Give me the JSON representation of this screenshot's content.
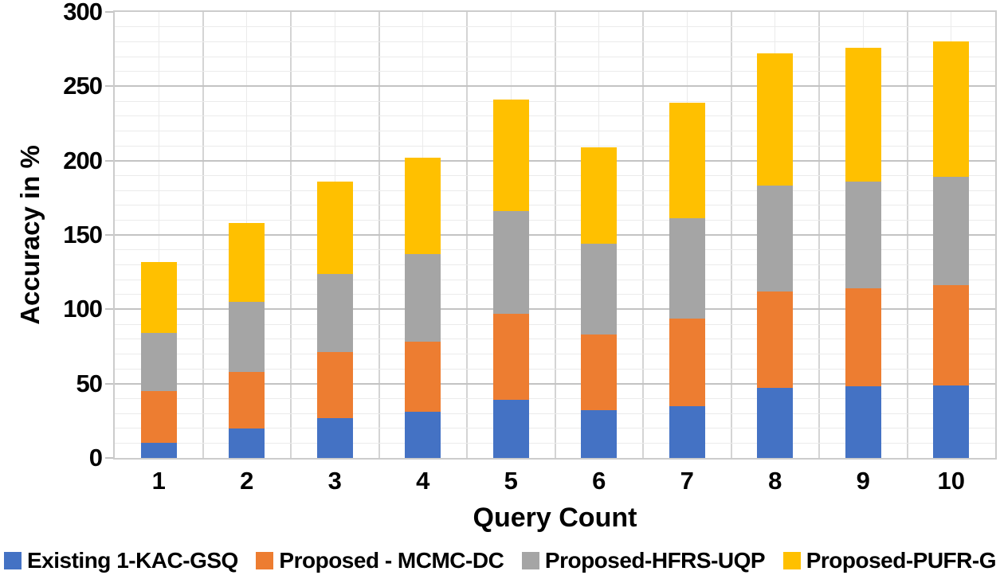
{
  "chart_data": {
    "type": "bar",
    "stacked": true,
    "title": "",
    "xlabel": "Query Count",
    "ylabel": "Accuracy in %",
    "ylim": [
      0,
      300
    ],
    "yticks": [
      0,
      50,
      100,
      150,
      200,
      250,
      300
    ],
    "yminor_step": 10,
    "grid": true,
    "legend_position": "bottom",
    "categories": [
      "1",
      "2",
      "3",
      "4",
      "5",
      "6",
      "7",
      "8",
      "9",
      "10"
    ],
    "series": [
      {
        "name": "Existing 1-KAC-GSQ",
        "color": "#4472C4",
        "values": [
          10,
          20,
          27,
          31,
          39,
          32,
          35,
          47,
          48,
          49
        ]
      },
      {
        "name": "Proposed - MCMC-DC",
        "color": "#ED7D31",
        "values": [
          35,
          38,
          44,
          47,
          58,
          51,
          59,
          65,
          66,
          67
        ]
      },
      {
        "name": "Proposed-HFRS-UQP",
        "color": "#A5A5A5",
        "values": [
          39,
          47,
          53,
          59,
          69,
          61,
          67,
          71,
          72,
          73
        ]
      },
      {
        "name": "Proposed-PUFR-G",
        "color": "#FFC000",
        "values": [
          48,
          53,
          62,
          65,
          75,
          65,
          78,
          89,
          90,
          91
        ]
      }
    ],
    "totals": [
      132,
      158,
      186,
      202,
      241,
      209,
      239,
      272,
      276,
      280
    ]
  }
}
